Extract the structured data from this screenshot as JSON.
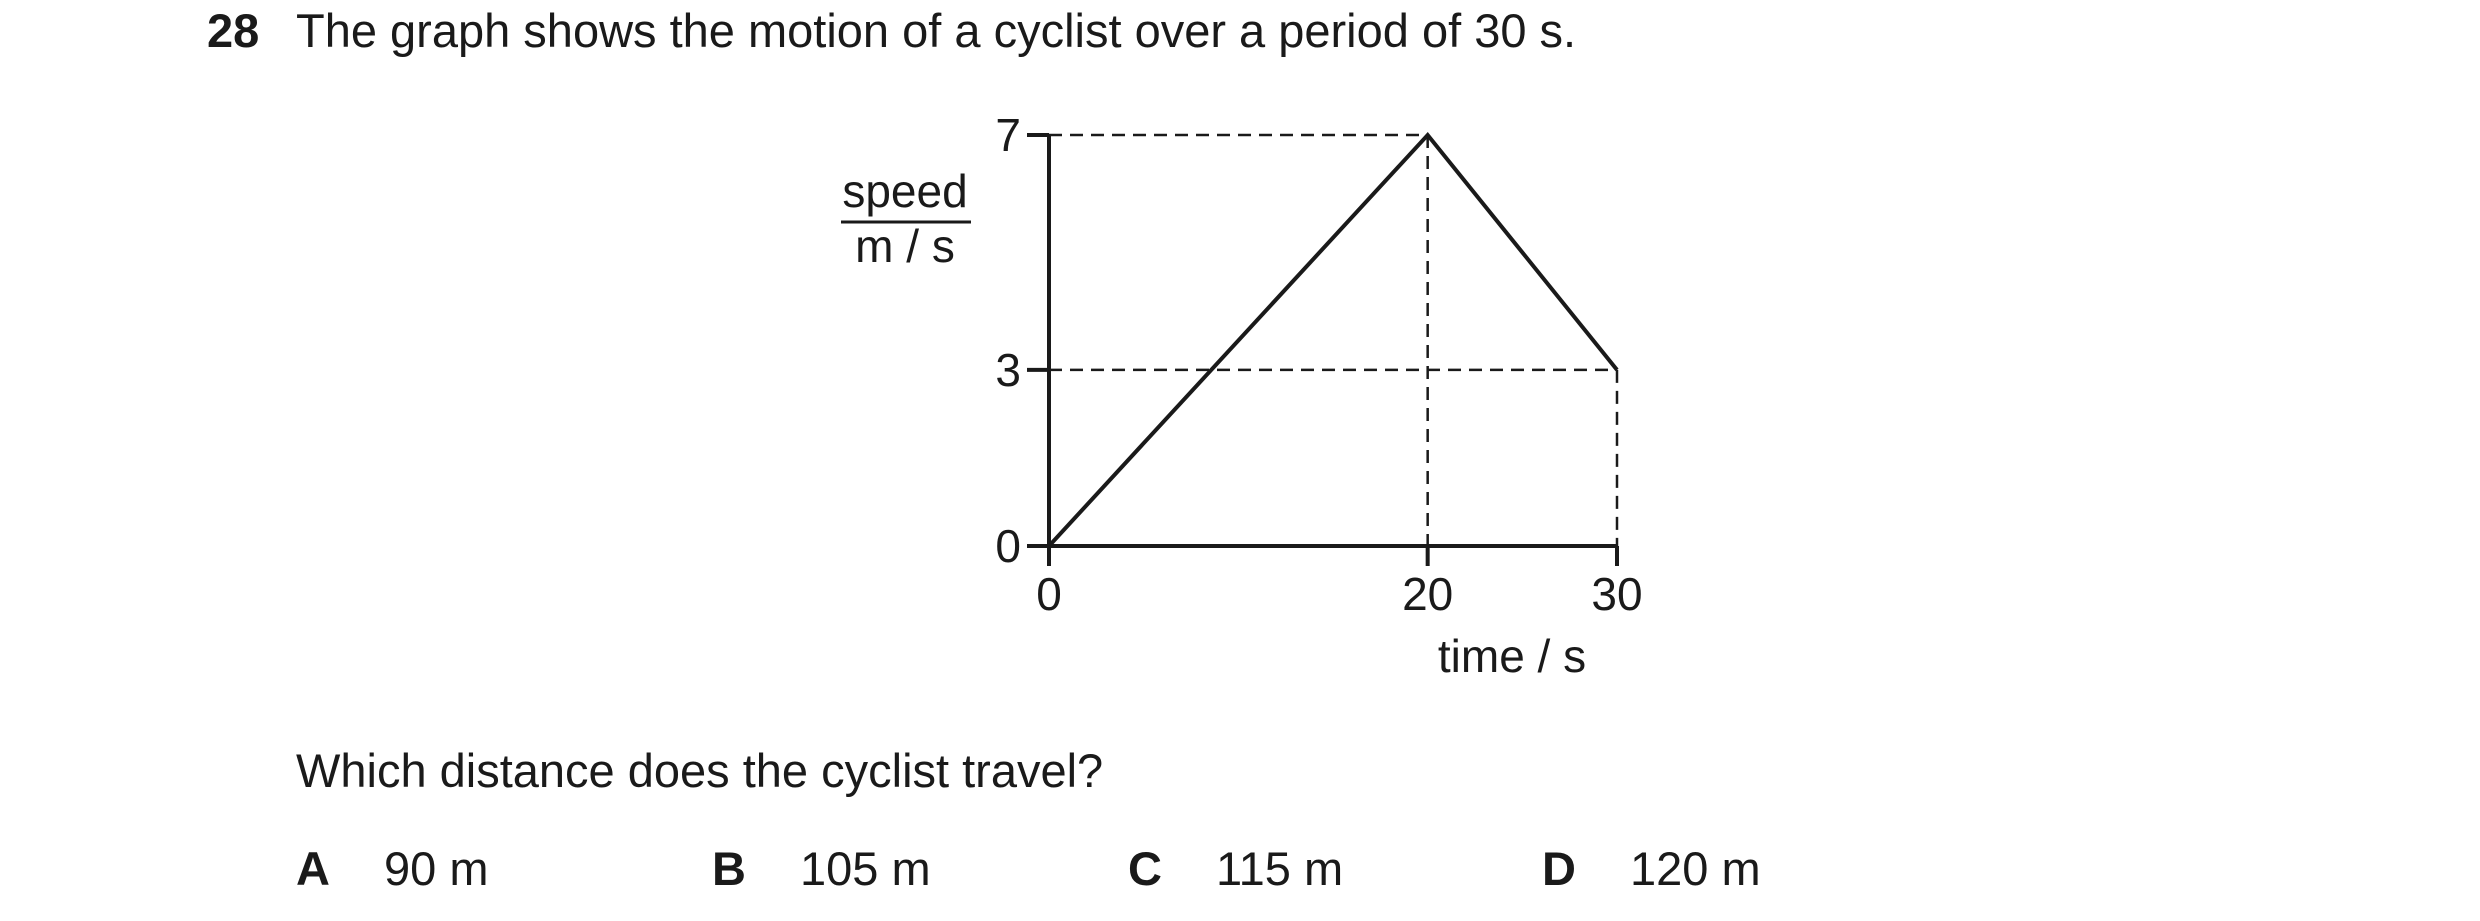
{
  "question": {
    "number": "28",
    "text": "The graph shows the motion of a cyclist over a period of 30 s.",
    "prompt": "Which distance does the cyclist travel?"
  },
  "options": [
    {
      "letter": "A",
      "value": "90 m"
    },
    {
      "letter": "B",
      "value": "105 m"
    },
    {
      "letter": "C",
      "value": "115 m"
    },
    {
      "letter": "D",
      "value": "120 m"
    }
  ],
  "chart_data": {
    "type": "line",
    "ylabel_top": "speed",
    "ylabel_bottom": "m / s",
    "xlabel": "time / s",
    "x_ticks": [
      "0",
      "20",
      "30"
    ],
    "y_ticks": [
      "0",
      "3",
      "7"
    ],
    "xlim": [
      0,
      30
    ],
    "ylim": [
      0,
      7
    ],
    "series": [
      {
        "x": [
          0,
          20,
          30
        ],
        "y": [
          0,
          7,
          3
        ]
      }
    ],
    "guide_lines": true,
    "colors": {
      "line": "#1a1a1a"
    }
  }
}
